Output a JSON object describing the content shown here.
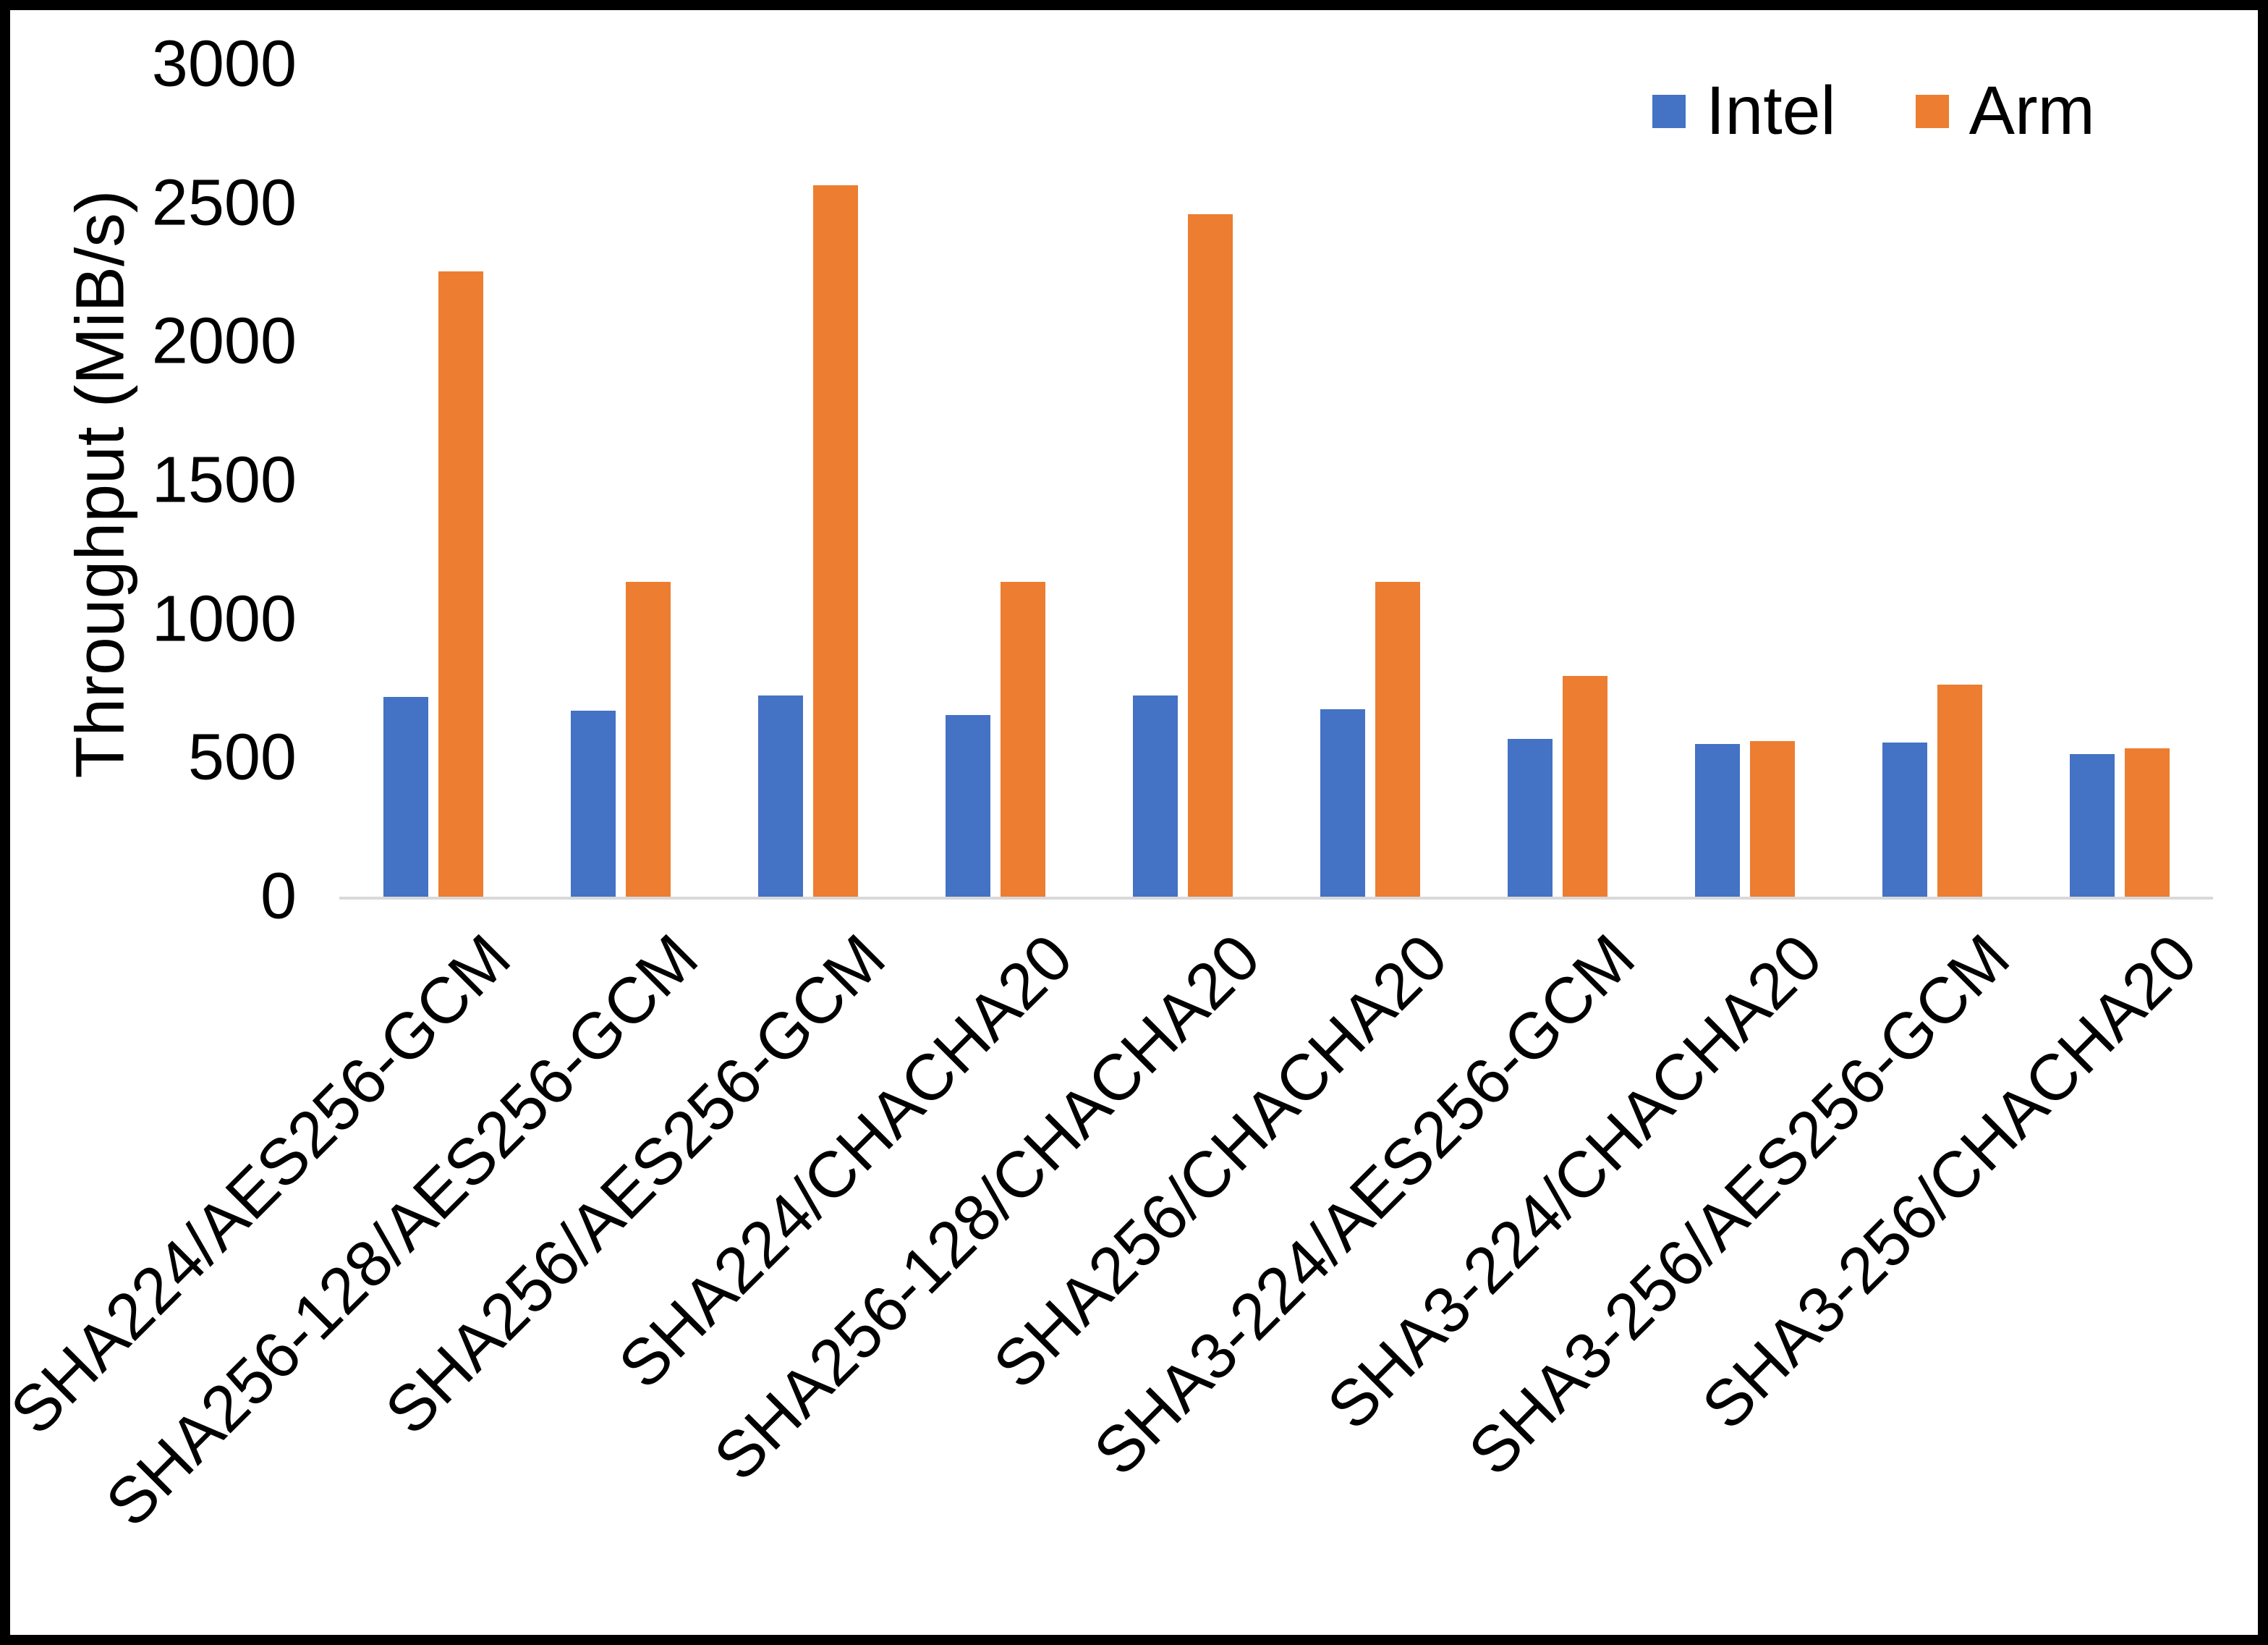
{
  "chart_data": {
    "type": "bar",
    "title": "",
    "xlabel": "",
    "ylabel": "Throughput (MiB/s)",
    "ylim": [
      0,
      3000
    ],
    "ytick_step": 500,
    "grid": false,
    "legend_position": "top-right",
    "categories": [
      "SHA224/AES256-GCM",
      "SHA256-128/AES256-GCM",
      "SHA256/AES256-GCM",
      "SHA224/CHACHA20",
      "SHA256-128/CHACHA20",
      "SHA256/CHACHA20",
      "SHA3-224/AES256-GCM",
      "SHA3-224/CHACHA20",
      "SHA3-256/AES256-GCM",
      "SHA3-256/CHACHA20"
    ],
    "series": [
      {
        "name": "Intel",
        "color": "#4472C4",
        "values": [
          720,
          670,
          725,
          655,
          725,
          675,
          570,
          550,
          555,
          515
        ]
      },
      {
        "name": "Arm",
        "color": "#ED7D31",
        "values": [
          2255,
          1135,
          2565,
          1135,
          2460,
          1135,
          795,
          560,
          765,
          535
        ]
      }
    ]
  }
}
